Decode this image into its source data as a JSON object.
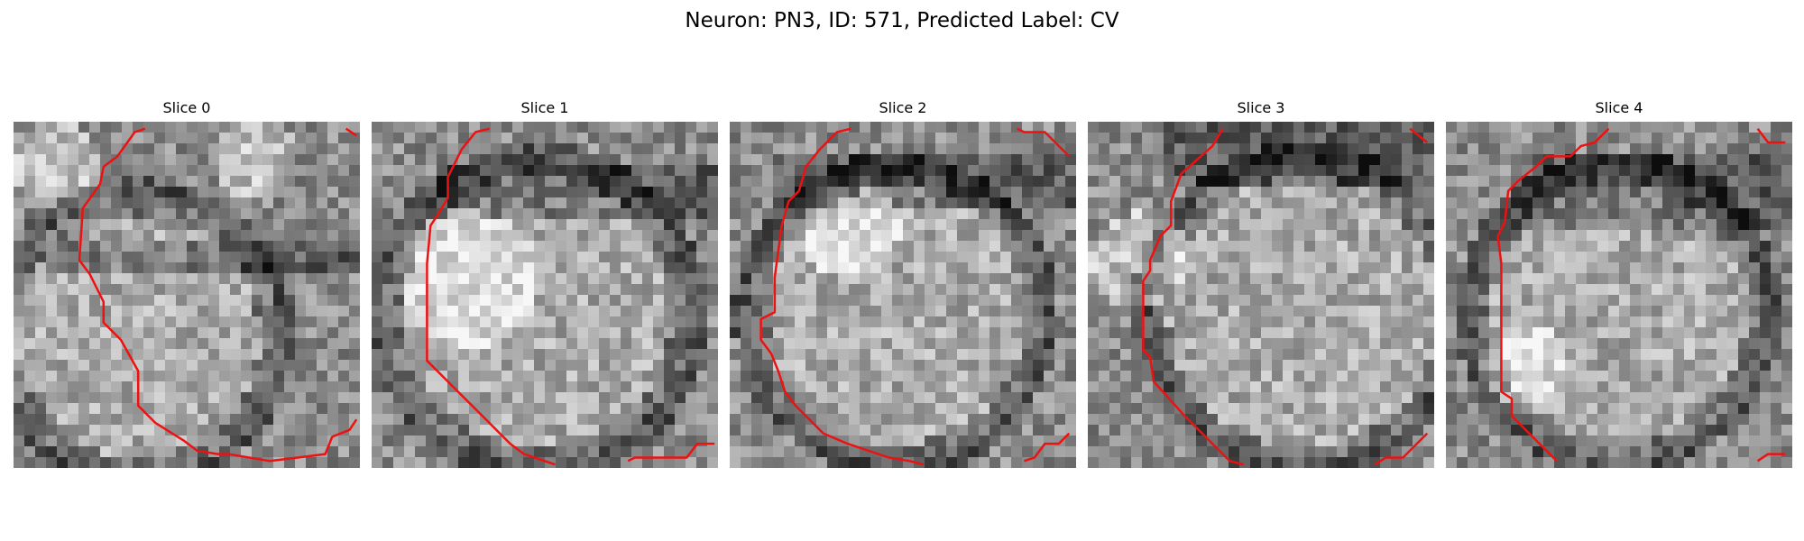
{
  "figure": {
    "title": "Neuron: PN3, ID: 571, Predicted Label: CV"
  },
  "contour_color": "#ee1111",
  "colormap": "gray",
  "panels": [
    {
      "title": "Slice 0",
      "image": {
        "seed": 11,
        "blob": [
          0.36,
          0.62,
          0.4
        ],
        "bright_zones": [
          [
            0.12,
            0.12,
            0.12
          ],
          [
            0.7,
            0.1,
            0.12
          ]
        ],
        "dark_bands": [
          [
            0.38,
            0.05,
            0.6
          ]
        ]
      },
      "contour": [
        [
          [
            0.38,
            0.02
          ],
          [
            0.35,
            0.03
          ],
          [
            0.3,
            0.1
          ],
          [
            0.26,
            0.13
          ],
          [
            0.25,
            0.18
          ],
          [
            0.2,
            0.25
          ],
          [
            0.19,
            0.4
          ],
          [
            0.22,
            0.44
          ],
          [
            0.26,
            0.52
          ],
          [
            0.26,
            0.58
          ],
          [
            0.31,
            0.63
          ],
          [
            0.36,
            0.72
          ],
          [
            0.36,
            0.82
          ],
          [
            0.41,
            0.87
          ],
          [
            0.49,
            0.92
          ],
          [
            0.53,
            0.95
          ],
          [
            0.59,
            0.96
          ],
          [
            0.62,
            0.96
          ],
          [
            0.74,
            0.98
          ],
          [
            0.82,
            0.97
          ],
          [
            0.9,
            0.96
          ],
          [
            0.92,
            0.91
          ],
          [
            0.97,
            0.89
          ],
          [
            0.99,
            0.86
          ]
        ],
        [
          [
            0.96,
            0.02
          ],
          [
            0.99,
            0.04
          ]
        ]
      ]
    },
    {
      "title": "Slice 1",
      "image": {
        "seed": 23,
        "blob": [
          0.48,
          0.55,
          0.44
        ],
        "bright_zones": [
          [
            0.28,
            0.45,
            0.2
          ]
        ],
        "dark_bands": [
          [
            0.2,
            0.08,
            0.4
          ]
        ]
      },
      "contour": [
        [
          [
            0.34,
            0.02
          ],
          [
            0.3,
            0.03
          ],
          [
            0.26,
            0.08
          ],
          [
            0.24,
            0.12
          ],
          [
            0.22,
            0.16
          ],
          [
            0.22,
            0.22
          ],
          [
            0.19,
            0.27
          ],
          [
            0.17,
            0.3
          ],
          [
            0.16,
            0.41
          ],
          [
            0.16,
            0.69
          ],
          [
            0.26,
            0.79
          ],
          [
            0.32,
            0.85
          ],
          [
            0.4,
            0.93
          ],
          [
            0.44,
            0.96
          ],
          [
            0.53,
            0.99
          ]
        ],
        [
          [
            0.74,
            0.98
          ],
          [
            0.76,
            0.97
          ],
          [
            0.91,
            0.97
          ],
          [
            0.94,
            0.93
          ],
          [
            0.99,
            0.93
          ]
        ]
      ]
    },
    {
      "title": "Slice 2",
      "image": {
        "seed": 37,
        "blob": [
          0.48,
          0.56,
          0.42
        ],
        "bright_zones": [
          [
            0.35,
            0.32,
            0.14
          ]
        ],
        "dark_bands": [
          [
            0.17,
            0.07,
            0.6
          ]
        ]
      },
      "contour": [
        [
          [
            0.35,
            0.02
          ],
          [
            0.31,
            0.03
          ],
          [
            0.26,
            0.08
          ],
          [
            0.22,
            0.13
          ],
          [
            0.2,
            0.2
          ],
          [
            0.17,
            0.23
          ],
          [
            0.15,
            0.3
          ],
          [
            0.13,
            0.45
          ],
          [
            0.13,
            0.55
          ],
          [
            0.09,
            0.57
          ],
          [
            0.09,
            0.63
          ],
          [
            0.12,
            0.67
          ],
          [
            0.14,
            0.72
          ],
          [
            0.16,
            0.78
          ],
          [
            0.19,
            0.82
          ],
          [
            0.27,
            0.9
          ],
          [
            0.34,
            0.93
          ],
          [
            0.4,
            0.95
          ],
          [
            0.46,
            0.97
          ],
          [
            0.52,
            0.98
          ],
          [
            0.56,
            0.99
          ]
        ],
        [
          [
            0.83,
            0.02
          ],
          [
            0.85,
            0.03
          ],
          [
            0.91,
            0.03
          ],
          [
            0.95,
            0.07
          ],
          [
            0.98,
            0.1
          ]
        ],
        [
          [
            0.85,
            0.98
          ],
          [
            0.88,
            0.97
          ],
          [
            0.91,
            0.93
          ],
          [
            0.95,
            0.93
          ],
          [
            0.98,
            0.9
          ]
        ]
      ]
    },
    {
      "title": "Slice 3",
      "image": {
        "seed": 53,
        "blob": [
          0.62,
          0.55,
          0.44
        ],
        "bright_zones": [
          [
            0.15,
            0.4,
            0.14
          ]
        ],
        "dark_bands": [
          [
            0.1,
            0.1,
            0.3
          ]
        ]
      },
      "contour": [
        [
          [
            0.39,
            0.02
          ],
          [
            0.36,
            0.07
          ],
          [
            0.27,
            0.15
          ],
          [
            0.24,
            0.23
          ],
          [
            0.24,
            0.3
          ],
          [
            0.21,
            0.33
          ],
          [
            0.18,
            0.4
          ],
          [
            0.18,
            0.43
          ],
          [
            0.16,
            0.46
          ],
          [
            0.16,
            0.66
          ],
          [
            0.18,
            0.68
          ],
          [
            0.19,
            0.75
          ],
          [
            0.28,
            0.85
          ],
          [
            0.41,
            0.98
          ],
          [
            0.45,
            0.99
          ]
        ],
        [
          [
            0.93,
            0.02
          ],
          [
            0.98,
            0.06
          ]
        ],
        [
          [
            0.83,
            0.99
          ],
          [
            0.86,
            0.97
          ],
          [
            0.91,
            0.97
          ],
          [
            0.98,
            0.9
          ]
        ]
      ]
    },
    {
      "title": "Slice 4",
      "image": {
        "seed": 71,
        "blob": [
          0.5,
          0.55,
          0.42
        ],
        "bright_zones": [
          [
            0.22,
            0.7,
            0.12
          ]
        ],
        "dark_bands": [
          [
            0.2,
            0.12,
            0.35
          ]
        ]
      },
      "contour": [
        [
          [
            0.47,
            0.02
          ],
          [
            0.43,
            0.06
          ],
          [
            0.39,
            0.07
          ],
          [
            0.36,
            0.1
          ],
          [
            0.29,
            0.1
          ],
          [
            0.26,
            0.13
          ],
          [
            0.21,
            0.17
          ],
          [
            0.18,
            0.2
          ],
          [
            0.17,
            0.29
          ],
          [
            0.15,
            0.33
          ],
          [
            0.16,
            0.41
          ],
          [
            0.16,
            0.78
          ],
          [
            0.19,
            0.8
          ],
          [
            0.19,
            0.85
          ],
          [
            0.27,
            0.93
          ],
          [
            0.32,
            0.98
          ]
        ],
        [
          [
            0.9,
            0.02
          ],
          [
            0.93,
            0.06
          ],
          [
            0.98,
            0.06
          ]
        ],
        [
          [
            0.9,
            0.98
          ],
          [
            0.93,
            0.96
          ],
          [
            0.98,
            0.96
          ]
        ]
      ]
    }
  ]
}
